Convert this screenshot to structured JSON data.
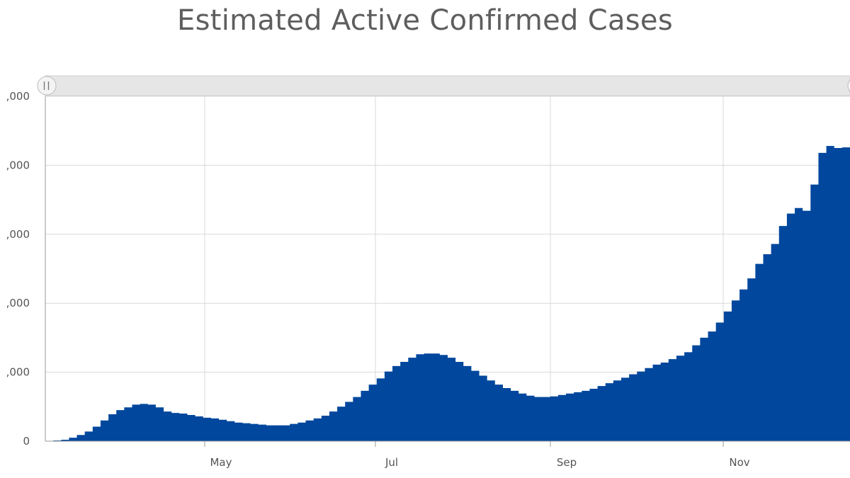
{
  "chart_data": {
    "type": "area",
    "title": "Estimated Active Confirmed Cases",
    "xlabel": "",
    "ylabel": "",
    "colors": {
      "area": "#00479d",
      "grid": "#d9d9d9",
      "scrollbar": "#e6e6e6"
    },
    "x_ticks": [
      "May",
      "Jul",
      "Sep",
      "Nov"
    ],
    "y_tick_labels": [
      "0",
      ",000",
      ",000",
      ",000",
      ",000",
      ",000"
    ],
    "y_tick_values": [
      0,
      1,
      2,
      3,
      4,
      5
    ],
    "ylim": [
      0,
      5
    ],
    "grid": true,
    "legend": "none",
    "series": [
      {
        "values": [
          0.0,
          0.01,
          0.02,
          0.05,
          0.09,
          0.14,
          0.21,
          0.3,
          0.39,
          0.45,
          0.49,
          0.53,
          0.54,
          0.53,
          0.49,
          0.43,
          0.41,
          0.4,
          0.38,
          0.36,
          0.34,
          0.33,
          0.31,
          0.29,
          0.27,
          0.26,
          0.25,
          0.24,
          0.23,
          0.23,
          0.23,
          0.25,
          0.27,
          0.3,
          0.33,
          0.37,
          0.43,
          0.5,
          0.57,
          0.64,
          0.73,
          0.82,
          0.91,
          1.01,
          1.09,
          1.15,
          1.21,
          1.26,
          1.27,
          1.27,
          1.25,
          1.21,
          1.15,
          1.09,
          1.02,
          0.95,
          0.88,
          0.82,
          0.77,
          0.73,
          0.69,
          0.66,
          0.64,
          0.64,
          0.65,
          0.67,
          0.69,
          0.71,
          0.73,
          0.76,
          0.8,
          0.84,
          0.88,
          0.92,
          0.97,
          1.01,
          1.06,
          1.11,
          1.14,
          1.19,
          1.24,
          1.29,
          1.39,
          1.5,
          1.59,
          1.72,
          1.88,
          2.04,
          2.2,
          2.36,
          2.57,
          2.71,
          2.86,
          3.12,
          3.3,
          3.38,
          3.34,
          3.72,
          4.18,
          4.28,
          4.25,
          4.26
        ]
      }
    ]
  }
}
